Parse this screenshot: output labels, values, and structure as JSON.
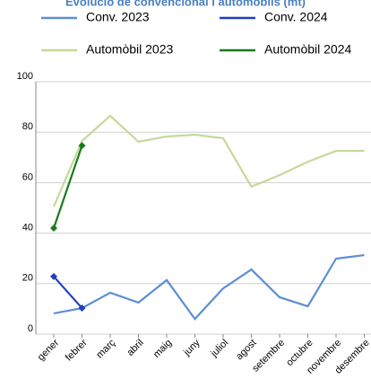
{
  "chart_data": {
    "type": "line",
    "title": "Evolució de convencional i automòbils (mt)",
    "categories": [
      "gener",
      "febrer",
      "març",
      "abril",
      "maig",
      "juny",
      "juliol",
      "agost",
      "setembre",
      "octubre",
      "novembre",
      "desembre"
    ],
    "series": [
      {
        "name": "Conv. 2023",
        "color": "#5b8fd4",
        "values": [
          8.2,
          10.3,
          16.4,
          12.5,
          21.4,
          6,
          18.1,
          25.6,
          14.6,
          11,
          29.9,
          31.3
        ]
      },
      {
        "name": "Conv. 2024",
        "color": "#1f3fbf",
        "marker": "diamond",
        "values": [
          22.8,
          10.3,
          null,
          null,
          null,
          null,
          null,
          null,
          null,
          null,
          null,
          null
        ]
      },
      {
        "name": "Automòbil 2023",
        "color": "#c5d99a",
        "values": [
          50.5,
          76.5,
          86.5,
          76.2,
          78.3,
          79,
          77.6,
          58.4,
          63,
          68.3,
          72.6,
          72.6
        ]
      },
      {
        "name": "Automòbil 2024",
        "color": "#1a7a1a",
        "marker": "diamond",
        "values": [
          42,
          74.7,
          null,
          null,
          null,
          null,
          null,
          null,
          null,
          null,
          null,
          null
        ]
      }
    ],
    "ylim": [
      0,
      100
    ],
    "yticks": [
      0,
      20,
      40,
      60,
      80,
      100
    ],
    "grid": true
  }
}
